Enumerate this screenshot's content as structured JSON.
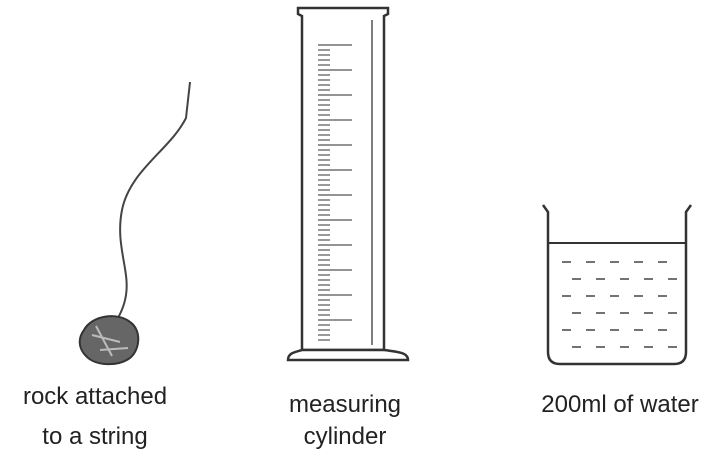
{
  "items": [
    {
      "label_lines": [
        "rock attached",
        "to a string"
      ]
    },
    {
      "label_lines": [
        "measuring",
        "cylinder"
      ]
    },
    {
      "label_lines": [
        "200ml of water"
      ]
    }
  ]
}
